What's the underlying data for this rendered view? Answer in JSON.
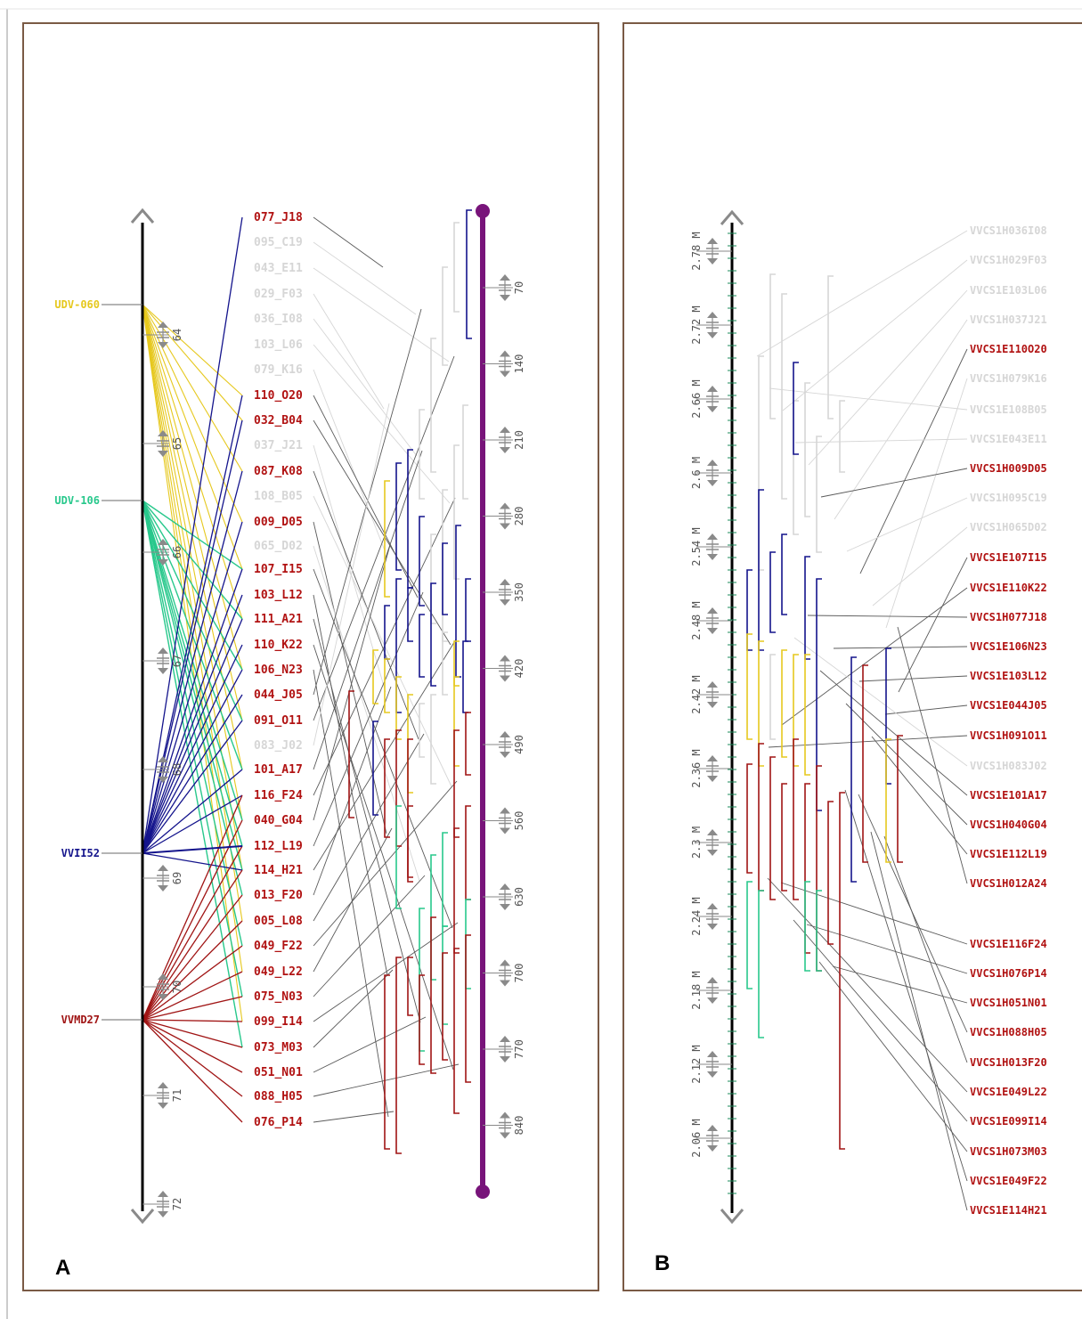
{
  "panels": [
    {
      "id": "A",
      "label": "A"
    },
    {
      "id": "B",
      "label": "B"
    }
  ],
  "colors": {
    "frame": "#7a5a45",
    "bac_red": "#b11212",
    "bac_grey": "#d6d6d6",
    "navy": "#14148c",
    "yellow": "#e6c81e",
    "teal": "#28c88c",
    "dark_red": "#a01414",
    "purple": "#78147a",
    "black": "#000000",
    "link": "#5a5a5a"
  },
  "panel_a": {
    "markers": [
      {
        "name": "UDV-060",
        "color": "yellow"
      },
      {
        "name": "UDV-106",
        "color": "teal"
      },
      {
        "name": "VVII52",
        "color": "navy"
      },
      {
        "name": "VVMD27",
        "color": "dark_red"
      }
    ],
    "axis_ticks": [
      "64",
      "65",
      "66",
      "67",
      "68",
      "69",
      "70",
      "71",
      "72"
    ],
    "bacs": [
      {
        "name": "077_J18",
        "state": "red"
      },
      {
        "name": "095_C19",
        "state": "grey"
      },
      {
        "name": "043_E11",
        "state": "grey"
      },
      {
        "name": "029_F03",
        "state": "grey"
      },
      {
        "name": "036_I08",
        "state": "grey"
      },
      {
        "name": "103_L06",
        "state": "grey"
      },
      {
        "name": "079_K16",
        "state": "grey"
      },
      {
        "name": "110_O20",
        "state": "red"
      },
      {
        "name": "032_B04",
        "state": "red"
      },
      {
        "name": "037_J21",
        "state": "grey"
      },
      {
        "name": "087_K08",
        "state": "red"
      },
      {
        "name": "108_B05",
        "state": "grey"
      },
      {
        "name": "009_D05",
        "state": "red"
      },
      {
        "name": "065_D02",
        "state": "grey"
      },
      {
        "name": "107_I15",
        "state": "red"
      },
      {
        "name": "103_L12",
        "state": "red"
      },
      {
        "name": "111_A21",
        "state": "red"
      },
      {
        "name": "110_K22",
        "state": "red"
      },
      {
        "name": "106_N23",
        "state": "red"
      },
      {
        "name": "044_J05",
        "state": "red"
      },
      {
        "name": "091_O11",
        "state": "red"
      },
      {
        "name": "083_J02",
        "state": "grey"
      },
      {
        "name": "101_A17",
        "state": "red"
      },
      {
        "name": "116_F24",
        "state": "red"
      },
      {
        "name": "040_G04",
        "state": "red"
      },
      {
        "name": "112_L19",
        "state": "red"
      },
      {
        "name": "114_H21",
        "state": "red"
      },
      {
        "name": "013_F20",
        "state": "red"
      },
      {
        "name": "005_L08",
        "state": "red"
      },
      {
        "name": "049_F22",
        "state": "red"
      },
      {
        "name": "049_L22",
        "state": "red"
      },
      {
        "name": "075_N03",
        "state": "red"
      },
      {
        "name": "099_I14",
        "state": "red"
      },
      {
        "name": "073_M03",
        "state": "red"
      },
      {
        "name": "051_N01",
        "state": "red"
      },
      {
        "name": "088_H05",
        "state": "red"
      },
      {
        "name": "076_P14",
        "state": "red"
      }
    ],
    "contig_ticks": [
      "70",
      "140",
      "210",
      "280",
      "350",
      "420",
      "490",
      "560",
      "630",
      "700",
      "770",
      "840"
    ]
  },
  "panel_b": {
    "axis_ticks": [
      "2.78 M",
      "2.72 M",
      "2.66 M",
      "2.6 M",
      "2.54 M",
      "2.48 M",
      "2.42 M",
      "2.36 M",
      "2.3 M",
      "2.24 M",
      "2.18 M",
      "2.12 M",
      "2.06 M"
    ],
    "bacs": [
      {
        "name": "VVCS1H036I08",
        "state": "grey"
      },
      {
        "name": "VVCS1H029F03",
        "state": "grey"
      },
      {
        "name": "VVCS1E103L06",
        "state": "grey"
      },
      {
        "name": "VVCS1H037J21",
        "state": "grey"
      },
      {
        "name": "VVCS1E110O20",
        "state": "red"
      },
      {
        "name": "VVCS1H079K16",
        "state": "grey"
      },
      {
        "name": "VVCS1E108B05",
        "state": "grey"
      },
      {
        "name": "VVCS1E043E11",
        "state": "grey"
      },
      {
        "name": "VVCS1H009D05",
        "state": "red"
      },
      {
        "name": "VVCS1H095C19",
        "state": "grey"
      },
      {
        "name": "VVCS1H065D02",
        "state": "grey"
      },
      {
        "name": "VVCS1E107I15",
        "state": "red"
      },
      {
        "name": "VVCS1E110K22",
        "state": "red"
      },
      {
        "name": "VVCS1H077J18",
        "state": "red"
      },
      {
        "name": "VVCS1E106N23",
        "state": "red"
      },
      {
        "name": "VVCS1E103L12",
        "state": "red"
      },
      {
        "name": "VVCS1E044J05",
        "state": "red"
      },
      {
        "name": "VVCS1H091O11",
        "state": "red"
      },
      {
        "name": "VVCS1H083J02",
        "state": "grey"
      },
      {
        "name": "VVCS1E101A17",
        "state": "red"
      },
      {
        "name": "VVCS1H040G04",
        "state": "red"
      },
      {
        "name": "VVCS1E112L19",
        "state": "red"
      },
      {
        "name": "VVCS1H012A24",
        "state": "red"
      },
      {
        "name": "VVCS1E116F24",
        "state": "red"
      },
      {
        "name": "VVCS1H076P14",
        "state": "red"
      },
      {
        "name": "VVCS1H051N01",
        "state": "red"
      },
      {
        "name": "VVCS1H088H05",
        "state": "red"
      },
      {
        "name": "VVCS1H013F20",
        "state": "red"
      },
      {
        "name": "VVCS1E049L22",
        "state": "red"
      },
      {
        "name": "VVCS1E099I14",
        "state": "red"
      },
      {
        "name": "VVCS1H073M03",
        "state": "red"
      },
      {
        "name": "VVCS1E049F22",
        "state": "red"
      },
      {
        "name": "VVCS1E114H21",
        "state": "red"
      }
    ]
  }
}
